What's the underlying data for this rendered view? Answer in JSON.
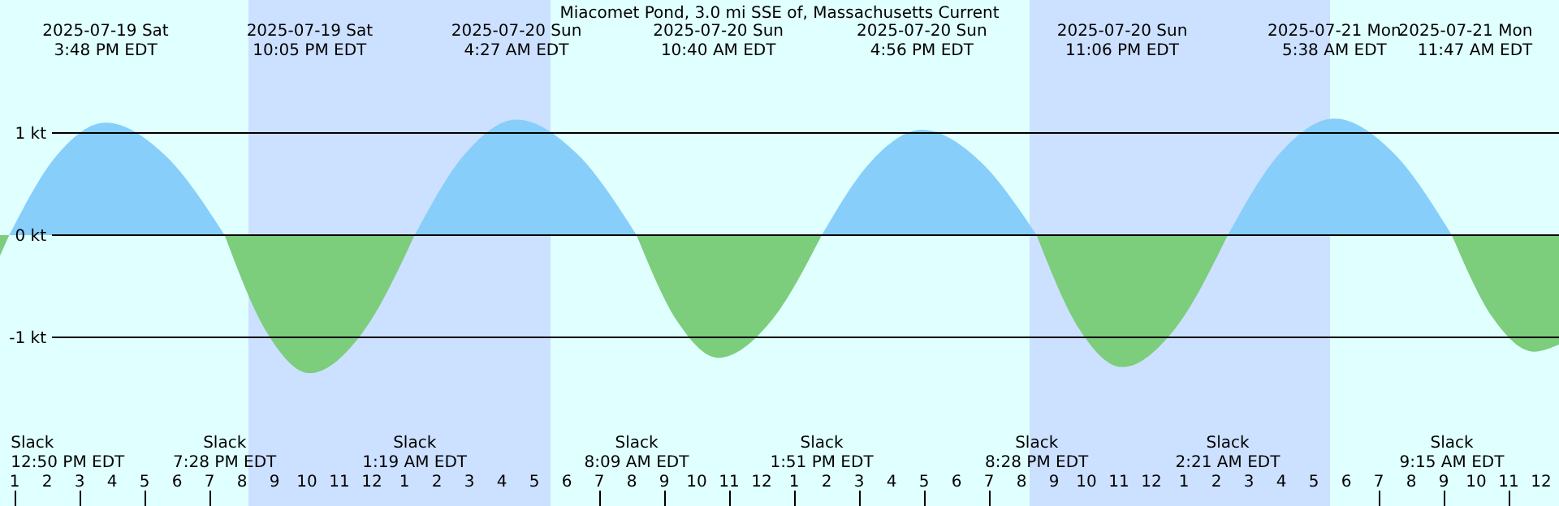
{
  "chart_data": {
    "type": "area",
    "title": "Miacomet Pond, 3.0 mi SSE of, Massachusetts Current",
    "x": [
      "2025-07-19T12:33",
      "2025-07-19T12:50",
      "2025-07-19T14:18",
      "2025-07-19T15:48",
      "2025-07-19T17:38",
      "2025-07-19T19:28",
      "2025-07-19T20:47",
      "2025-07-19T22:05",
      "2025-07-19T23:42",
      "2025-07-20T01:19",
      "2025-07-20T02:53",
      "2025-07-20T04:27",
      "2025-07-20T06:18",
      "2025-07-20T08:09",
      "2025-07-20T09:25",
      "2025-07-20T10:40",
      "2025-07-20T12:16",
      "2025-07-20T13:51",
      "2025-07-20T15:24",
      "2025-07-20T16:56",
      "2025-07-20T18:42",
      "2025-07-20T20:28",
      "2025-07-20T21:47",
      "2025-07-20T23:06",
      "2025-07-21T00:43",
      "2025-07-21T02:21",
      "2025-07-21T03:59",
      "2025-07-21T05:38",
      "2025-07-21T07:26",
      "2025-07-21T09:15",
      "2025-07-21T10:31",
      "2025-07-21T11:47",
      "2025-07-21T12:33"
    ],
    "series": [
      {
        "color": "#87cefa",
        "values": [
          null,
          0,
          0.78,
          1.1,
          0.78,
          0,
          null,
          null,
          null,
          0,
          0.8,
          1.13,
          0.8,
          0,
          null,
          null,
          null,
          0,
          0.73,
          1.03,
          0.73,
          0,
          null,
          null,
          null,
          0,
          0.81,
          1.14,
          0.81,
          0,
          null,
          null,
          null
        ]
      },
      {
        "color": "#7ccd7c",
        "values": [
          -0.2,
          0,
          null,
          null,
          null,
          0,
          -0.96,
          -1.35,
          -0.96,
          0,
          null,
          null,
          null,
          0,
          -0.85,
          -1.2,
          -0.85,
          0,
          null,
          null,
          null,
          0,
          -0.92,
          -1.29,
          -0.92,
          0,
          null,
          null,
          null,
          0,
          -0.81,
          -1.14,
          -1.07
        ]
      }
    ],
    "xlim": [
      "2025-07-19T12:33",
      "2025-07-21T12:33"
    ],
    "ylim": [
      -2.65,
      2.3
    ],
    "yticks": [
      {
        "value": 1,
        "label": "1 kt"
      },
      {
        "value": 0,
        "label": "0 kt"
      },
      {
        "value": -1,
        "label": "-1 kt"
      }
    ],
    "xticks": [
      {
        "value": "2025-07-19T13:00",
        "label": "1"
      },
      {
        "value": "2025-07-19T14:00",
        "label": "2"
      },
      {
        "value": "2025-07-19T15:00",
        "label": "3"
      },
      {
        "value": "2025-07-19T16:00",
        "label": "4"
      },
      {
        "value": "2025-07-19T17:00",
        "label": "5"
      },
      {
        "value": "2025-07-19T18:00",
        "label": "6"
      },
      {
        "value": "2025-07-19T19:00",
        "label": "7"
      },
      {
        "value": "2025-07-19T20:00",
        "label": "8"
      },
      {
        "value": "2025-07-19T21:00",
        "label": "9"
      },
      {
        "value": "2025-07-19T22:00",
        "label": "10"
      },
      {
        "value": "2025-07-19T23:00",
        "label": "11"
      },
      {
        "value": "2025-07-20T00:00",
        "label": "12"
      },
      {
        "value": "2025-07-20T01:00",
        "label": "1"
      },
      {
        "value": "2025-07-20T02:00",
        "label": "2"
      },
      {
        "value": "2025-07-20T03:00",
        "label": "3"
      },
      {
        "value": "2025-07-20T04:00",
        "label": "4"
      },
      {
        "value": "2025-07-20T05:00",
        "label": "5"
      },
      {
        "value": "2025-07-20T06:00",
        "label": "6"
      },
      {
        "value": "2025-07-20T07:00",
        "label": "7"
      },
      {
        "value": "2025-07-20T08:00",
        "label": "8"
      },
      {
        "value": "2025-07-20T09:00",
        "label": "9"
      },
      {
        "value": "2025-07-20T10:00",
        "label": "10"
      },
      {
        "value": "2025-07-20T11:00",
        "label": "11"
      },
      {
        "value": "2025-07-20T12:00",
        "label": "12"
      },
      {
        "value": "2025-07-20T13:00",
        "label": "1"
      },
      {
        "value": "2025-07-20T14:00",
        "label": "2"
      },
      {
        "value": "2025-07-20T15:00",
        "label": "3"
      },
      {
        "value": "2025-07-20T16:00",
        "label": "4"
      },
      {
        "value": "2025-07-20T17:00",
        "label": "5"
      },
      {
        "value": "2025-07-20T18:00",
        "label": "6"
      },
      {
        "value": "2025-07-20T19:00",
        "label": "7"
      },
      {
        "value": "2025-07-20T20:00",
        "label": "8"
      },
      {
        "value": "2025-07-20T21:00",
        "label": "9"
      },
      {
        "value": "2025-07-20T22:00",
        "label": "10"
      },
      {
        "value": "2025-07-20T23:00",
        "label": "11"
      },
      {
        "value": "2025-07-21T00:00",
        "label": "12"
      },
      {
        "value": "2025-07-21T01:00",
        "label": "1"
      },
      {
        "value": "2025-07-21T02:00",
        "label": "2"
      },
      {
        "value": "2025-07-21T03:00",
        "label": "3"
      },
      {
        "value": "2025-07-21T04:00",
        "label": "4"
      },
      {
        "value": "2025-07-21T05:00",
        "label": "5"
      },
      {
        "value": "2025-07-21T06:00",
        "label": "6"
      },
      {
        "value": "2025-07-21T07:00",
        "label": "7"
      },
      {
        "value": "2025-07-21T08:00",
        "label": "8"
      },
      {
        "value": "2025-07-21T09:00",
        "label": "9"
      },
      {
        "value": "2025-07-21T10:00",
        "label": "10"
      },
      {
        "value": "2025-07-21T11:00",
        "label": "11"
      },
      {
        "value": "2025-07-21T12:00",
        "label": "12"
      }
    ],
    "grid": "y",
    "bands": [
      {
        "axis": "x",
        "from": "2025-07-19T20:12",
        "to": "2025-07-20T05:30",
        "color": "#cce0ff"
      },
      {
        "axis": "x",
        "from": "2025-07-20T20:15",
        "to": "2025-07-21T05:30",
        "color": "#cce0ff"
      }
    ],
    "annotations": [
      "2025-07-19 Sat\n3:48 PM EDT",
      "2025-07-19 Sat\n10:05 PM EDT",
      "2025-07-20 Sun\n4:27 AM EDT",
      "2025-07-20 Sun\n10:40 AM EDT",
      "2025-07-20 Sun\n4:56 PM EDT",
      "2025-07-20 Sun\n11:06 PM EDT",
      "2025-07-21 Mon\n5:38 AM EDT",
      "2025-07-21 Mon\n11:47 AM EDT",
      "Slack\n12:50 PM EDT",
      "Slack\n7:28 PM EDT",
      "Slack\n1:19 AM EDT",
      "Slack\n8:09 AM EDT",
      "Slack\n1:51 PM EDT",
      "Slack\n8:28 PM EDT",
      "Slack\n2:21 AM EDT",
      "Slack\n9:15 AM EDT"
    ]
  }
}
